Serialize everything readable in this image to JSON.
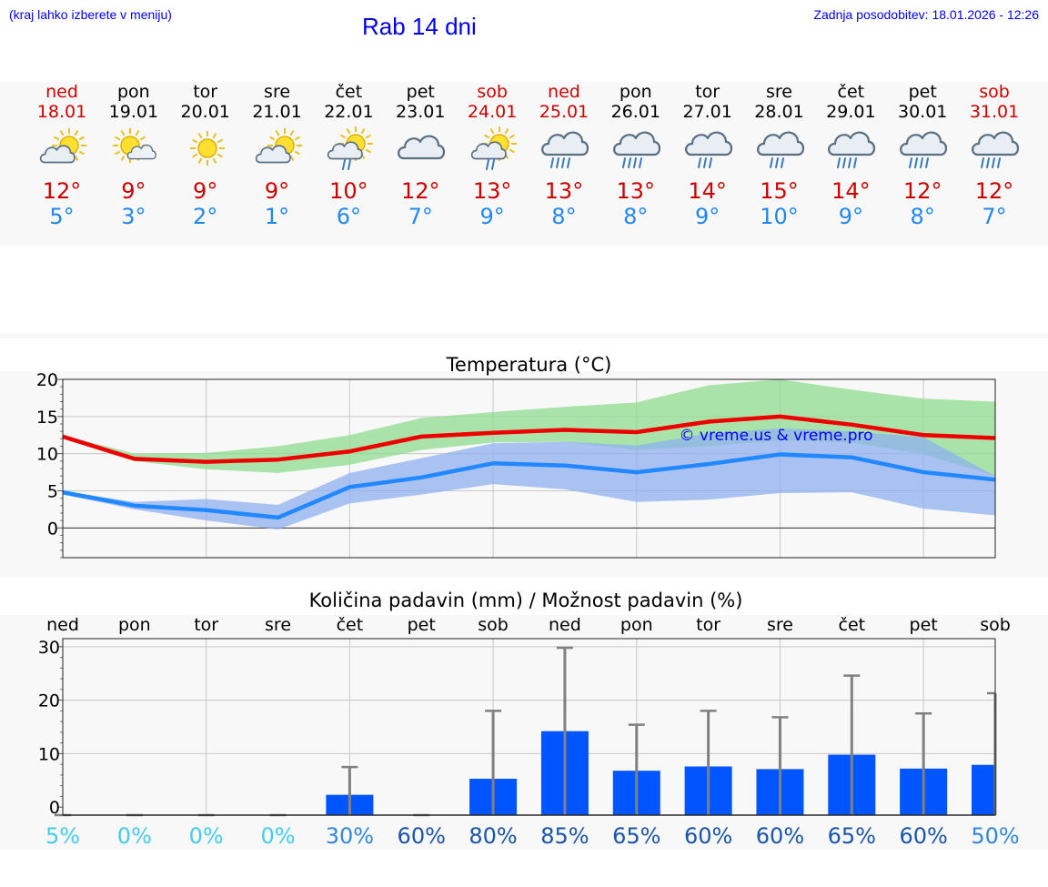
{
  "header": {
    "hint": "(kraj lahko izberete v meniju)",
    "title": "Rab 14 dni",
    "updated": "Zadnja posodobitev: 18.01.2026 - 12:26"
  },
  "forecast": {
    "days": [
      {
        "name": "ned",
        "date": "18.01",
        "tmax": "12°",
        "tmin": "5°",
        "icon": "sun-cloud",
        "weekend": true
      },
      {
        "name": "pon",
        "date": "19.01",
        "tmax": "9°",
        "tmin": "3°",
        "icon": "sun-small-cloud",
        "weekend": false
      },
      {
        "name": "tor",
        "date": "20.01",
        "tmax": "9°",
        "tmin": "2°",
        "icon": "sun",
        "weekend": false
      },
      {
        "name": "sre",
        "date": "21.01",
        "tmax": "9°",
        "tmin": "1°",
        "icon": "sun-cloud",
        "weekend": false
      },
      {
        "name": "čet",
        "date": "22.01",
        "tmax": "10°",
        "tmin": "6°",
        "icon": "sun-cloud-light-rain",
        "weekend": false
      },
      {
        "name": "pet",
        "date": "23.01",
        "tmax": "12°",
        "tmin": "7°",
        "icon": "cloud",
        "weekend": false
      },
      {
        "name": "sob",
        "date": "24.01",
        "tmax": "13°",
        "tmin": "9°",
        "icon": "sun-cloud-light-rain",
        "weekend": true
      },
      {
        "name": "ned",
        "date": "25.01",
        "tmax": "13°",
        "tmin": "8°",
        "icon": "cloud-rain",
        "weekend": true
      },
      {
        "name": "pon",
        "date": "26.01",
        "tmax": "13°",
        "tmin": "8°",
        "icon": "cloud-rain",
        "weekend": false
      },
      {
        "name": "tor",
        "date": "27.01",
        "tmax": "14°",
        "tmin": "9°",
        "icon": "cloud-light-rain",
        "weekend": false
      },
      {
        "name": "sre",
        "date": "28.01",
        "tmax": "15°",
        "tmin": "10°",
        "icon": "cloud-light-rain",
        "weekend": false
      },
      {
        "name": "čet",
        "date": "29.01",
        "tmax": "14°",
        "tmin": "9°",
        "icon": "cloud-rain",
        "weekend": false
      },
      {
        "name": "pet",
        "date": "30.01",
        "tmax": "12°",
        "tmin": "8°",
        "icon": "cloud-rain",
        "weekend": false
      },
      {
        "name": "sob",
        "date": "31.01",
        "tmax": "12°",
        "tmin": "7°",
        "icon": "cloud-rain",
        "weekend": true
      }
    ]
  },
  "colors": {
    "weekend": "#cc0000",
    "tmax": "#cc0000",
    "tmin": "#2288ee",
    "max_line": "#ee0000",
    "min_line": "#2288ff",
    "max_band": "#8fdc8f",
    "min_band": "#8fb0f0",
    "bar": "#0055ff",
    "error": "#808080",
    "link": "#0000ee"
  },
  "chart_data": [
    {
      "type": "line",
      "title": "Temperatura (°C)",
      "watermark": "© vreme.us & vreme.pro",
      "ylim": [
        -4,
        20
      ],
      "yticks": [
        0,
        5,
        10,
        15,
        20
      ],
      "x": [
        0,
        1,
        2,
        3,
        4,
        5,
        6,
        7,
        8,
        9,
        10,
        11,
        12,
        13
      ],
      "series": [
        {
          "name": "max",
          "values": [
            12.3,
            9.3,
            8.9,
            9.2,
            10.3,
            12.3,
            12.8,
            13.2,
            12.9,
            14.3,
            15.0,
            13.9,
            12.5,
            12.1
          ]
        },
        {
          "name": "min",
          "values": [
            4.8,
            3.0,
            2.4,
            1.4,
            5.5,
            6.8,
            8.7,
            8.4,
            7.5,
            8.6,
            9.9,
            9.5,
            7.5,
            6.5
          ]
        }
      ],
      "bands": [
        {
          "name": "max-range",
          "low": [
            12.0,
            9.0,
            7.9,
            7.4,
            8.5,
            10.5,
            11.5,
            11.6,
            10.5,
            11.0,
            11.8,
            11.5,
            9.9,
            7.0
          ],
          "high": [
            12.5,
            10.0,
            10.1,
            11.0,
            12.5,
            14.8,
            15.6,
            16.3,
            16.9,
            19.2,
            20.0,
            18.6,
            17.4,
            17.0
          ]
        },
        {
          "name": "min-range",
          "low": [
            4.5,
            2.5,
            1.0,
            -0.2,
            3.3,
            4.5,
            5.9,
            5.2,
            3.5,
            3.8,
            4.7,
            4.8,
            2.6,
            1.7
          ],
          "high": [
            5.0,
            3.5,
            3.9,
            3.1,
            7.4,
            9.4,
            11.4,
            11.6,
            11.1,
            12.7,
            13.4,
            13.0,
            12.2,
            7.0
          ]
        }
      ]
    },
    {
      "type": "bar",
      "title": "Količina padavin (mm) / Možnost padavin (%)",
      "categories": [
        "ned",
        "pon",
        "tor",
        "sre",
        "čet",
        "pet",
        "sob",
        "ned",
        "pon",
        "tor",
        "sre",
        "čet",
        "pet",
        "sob"
      ],
      "values": [
        0,
        0,
        0,
        0,
        2.3,
        0,
        5.3,
        14.2,
        6.8,
        7.6,
        7.1,
        9.8,
        7.2,
        7.9
      ],
      "error_max": [
        0,
        0,
        0,
        0,
        7.5,
        0,
        18.0,
        29.8,
        15.4,
        18.0,
        16.8,
        24.6,
        17.5,
        21.3
      ],
      "probability": [
        "5%",
        "0%",
        "0%",
        "0%",
        "30%",
        "60%",
        "80%",
        "85%",
        "65%",
        "60%",
        "60%",
        "65%",
        "60%",
        "50%"
      ],
      "ylim": [
        -1.5,
        31.5
      ],
      "yticks": [
        0,
        10,
        20,
        30
      ]
    }
  ]
}
